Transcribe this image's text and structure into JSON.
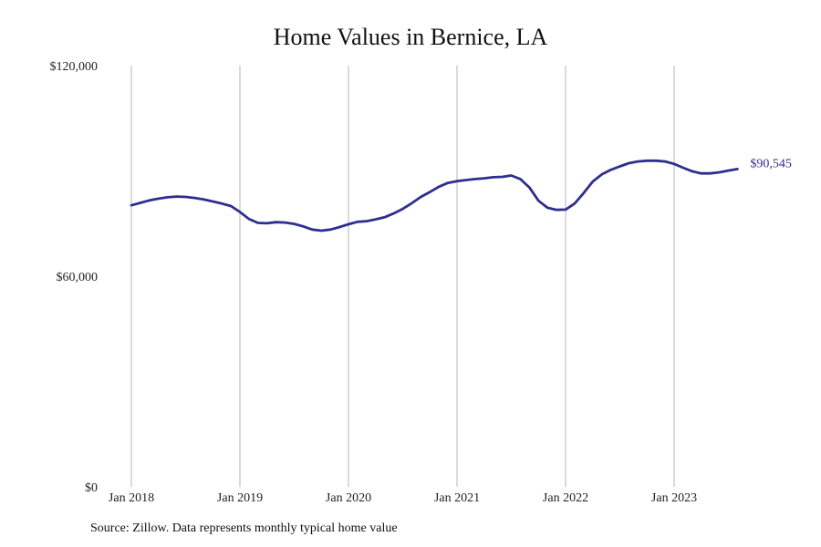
{
  "chart_data": {
    "type": "line",
    "title": "Home Values in Bernice, LA",
    "xlabel": "",
    "ylabel": "",
    "ylim": [
      0,
      120000
    ],
    "yticks": [
      {
        "value": 0,
        "label": "$0"
      },
      {
        "value": 60000,
        "label": "$60,000"
      },
      {
        "value": 120000,
        "label": "$120,000"
      }
    ],
    "xticks": [
      "Jan 2018",
      "Jan 2019",
      "Jan 2020",
      "Jan 2021",
      "Jan 2022",
      "Jan 2023"
    ],
    "grid": "vertical",
    "line_color": "#2e2e8f",
    "series": [
      {
        "end_label": "$90,545",
        "points": [
          {
            "x": "2018-01",
            "y": 80200
          },
          {
            "x": "2018-02",
            "y": 80900
          },
          {
            "x": "2018-03",
            "y": 81600
          },
          {
            "x": "2018-04",
            "y": 82100
          },
          {
            "x": "2018-05",
            "y": 82500
          },
          {
            "x": "2018-06",
            "y": 82700
          },
          {
            "x": "2018-07",
            "y": 82600
          },
          {
            "x": "2018-08",
            "y": 82300
          },
          {
            "x": "2018-09",
            "y": 81900
          },
          {
            "x": "2018-10",
            "y": 81300
          },
          {
            "x": "2018-11",
            "y": 80700
          },
          {
            "x": "2018-12",
            "y": 80000
          },
          {
            "x": "2019-01",
            "y": 78300
          },
          {
            "x": "2019-02",
            "y": 76300
          },
          {
            "x": "2019-03",
            "y": 75200
          },
          {
            "x": "2019-04",
            "y": 75100
          },
          {
            "x": "2019-05",
            "y": 75400
          },
          {
            "x": "2019-06",
            "y": 75300
          },
          {
            "x": "2019-07",
            "y": 74900
          },
          {
            "x": "2019-08",
            "y": 74200
          },
          {
            "x": "2019-09",
            "y": 73300
          },
          {
            "x": "2019-10",
            "y": 73000
          },
          {
            "x": "2019-11",
            "y": 73300
          },
          {
            "x": "2019-12",
            "y": 74000
          },
          {
            "x": "2020-01",
            "y": 74800
          },
          {
            "x": "2020-02",
            "y": 75500
          },
          {
            "x": "2020-03",
            "y": 75700
          },
          {
            "x": "2020-04",
            "y": 76200
          },
          {
            "x": "2020-05",
            "y": 76800
          },
          {
            "x": "2020-06",
            "y": 77900
          },
          {
            "x": "2020-07",
            "y": 79200
          },
          {
            "x": "2020-08",
            "y": 80800
          },
          {
            "x": "2020-09",
            "y": 82600
          },
          {
            "x": "2020-10",
            "y": 84000
          },
          {
            "x": "2020-11",
            "y": 85500
          },
          {
            "x": "2020-12",
            "y": 86600
          },
          {
            "x": "2021-01",
            "y": 87100
          },
          {
            "x": "2021-02",
            "y": 87400
          },
          {
            "x": "2021-03",
            "y": 87700
          },
          {
            "x": "2021-04",
            "y": 87900
          },
          {
            "x": "2021-05",
            "y": 88200
          },
          {
            "x": "2021-06",
            "y": 88300
          },
          {
            "x": "2021-07",
            "y": 88700
          },
          {
            "x": "2021-08",
            "y": 87700
          },
          {
            "x": "2021-09",
            "y": 85300
          },
          {
            "x": "2021-10",
            "y": 81500
          },
          {
            "x": "2021-11",
            "y": 79500
          },
          {
            "x": "2021-12",
            "y": 78900
          },
          {
            "x": "2022-01",
            "y": 79000
          },
          {
            "x": "2022-02",
            "y": 80700
          },
          {
            "x": "2022-03",
            "y": 83700
          },
          {
            "x": "2022-04",
            "y": 87000
          },
          {
            "x": "2022-05",
            "y": 89000
          },
          {
            "x": "2022-06",
            "y": 90300
          },
          {
            "x": "2022-07",
            "y": 91300
          },
          {
            "x": "2022-08",
            "y": 92200
          },
          {
            "x": "2022-09",
            "y": 92700
          },
          {
            "x": "2022-10",
            "y": 92900
          },
          {
            "x": "2022-11",
            "y": 92900
          },
          {
            "x": "2022-12",
            "y": 92700
          },
          {
            "x": "2023-01",
            "y": 92000
          },
          {
            "x": "2023-02",
            "y": 90900
          },
          {
            "x": "2023-03",
            "y": 89900
          },
          {
            "x": "2023-04",
            "y": 89300
          },
          {
            "x": "2023-05",
            "y": 89300
          },
          {
            "x": "2023-06",
            "y": 89600
          },
          {
            "x": "2023-07",
            "y": 90100
          },
          {
            "x": "2023-08",
            "y": 90545
          }
        ]
      }
    ]
  },
  "source_note": "Source: Zillow. Data represents monthly typical home value"
}
